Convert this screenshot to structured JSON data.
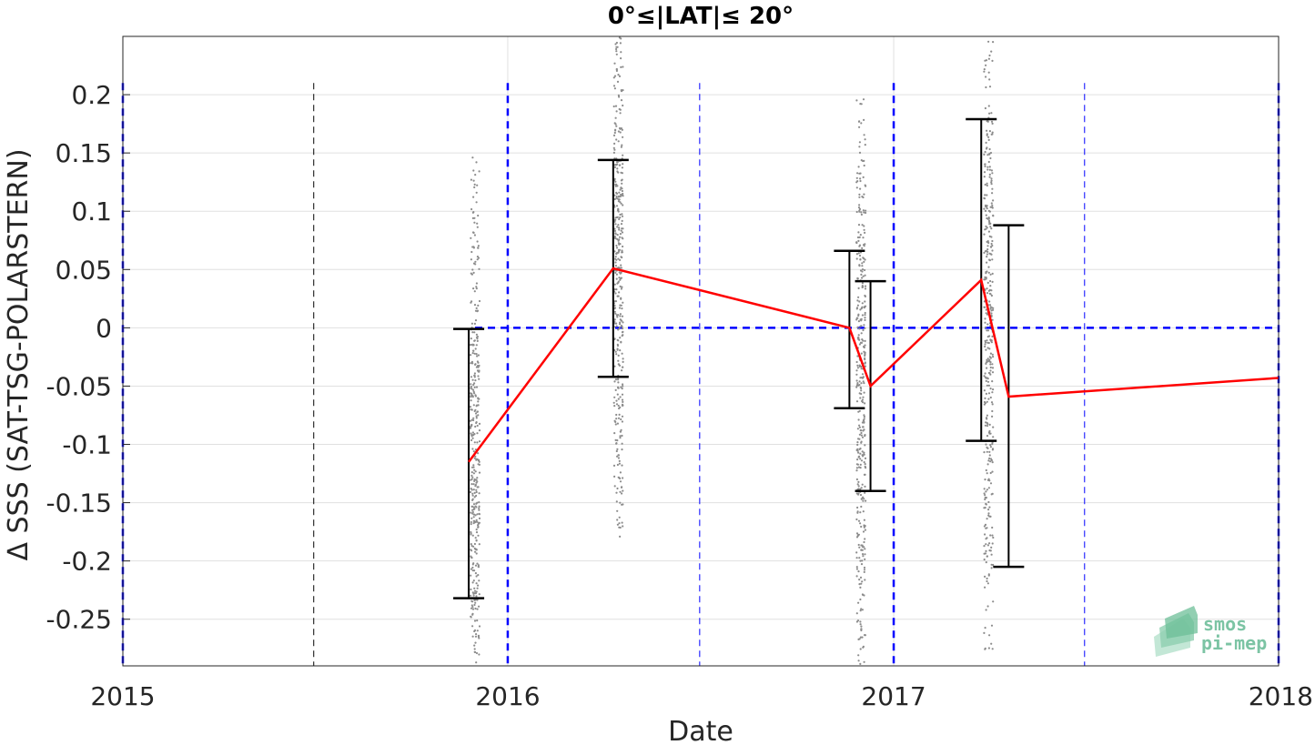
{
  "chart_data": {
    "type": "line",
    "title": "0°≤|LAT|≤ 20°",
    "xlabel": "Date",
    "ylabel": "Δ SSS (SAT-TSG-POLARSTERN)",
    "xlim": [
      "2015-01-01",
      "2018-01-01"
    ],
    "ylim": [
      -0.29,
      0.25
    ],
    "x_ticks": [
      "2015",
      "2016",
      "2017",
      "2018"
    ],
    "y_ticks": [
      0.2,
      0.15,
      0.1,
      0.05,
      0,
      -0.05,
      -0.1,
      -0.15,
      -0.2,
      -0.25
    ],
    "y_tick_labels": [
      "0.2",
      "0.15",
      "0.1",
      "0.05",
      "0",
      "-0.05",
      "-0.1",
      "-0.15",
      "-0.2",
      "-0.25"
    ],
    "grid": true,
    "mean_line": {
      "color": "#ff0000",
      "points": [
        {
          "date": "2015-11-25",
          "y": -0.115
        },
        {
          "date": "2016-04-10",
          "y": 0.051
        },
        {
          "date": "2016-11-20",
          "y": 0.0
        },
        {
          "date": "2016-12-10",
          "y": -0.05
        },
        {
          "date": "2017-03-25",
          "y": 0.041
        },
        {
          "date": "2017-04-20",
          "y": -0.059
        },
        {
          "date": "2018-01-01",
          "y": -0.043
        }
      ]
    },
    "error_bars": [
      {
        "date": "2015-11-25",
        "low": -0.232,
        "high": -0.001
      },
      {
        "date": "2016-04-10",
        "low": -0.042,
        "high": 0.144
      },
      {
        "date": "2016-11-20",
        "low": -0.069,
        "high": 0.066
      },
      {
        "date": "2016-12-10",
        "low": -0.14,
        "high": 0.04
      },
      {
        "date": "2017-03-25",
        "low": -0.097,
        "high": 0.179
      },
      {
        "date": "2017-04-20",
        "low": -0.205,
        "high": 0.088
      }
    ],
    "scatter_clusters": [
      {
        "date": "2015-12-01",
        "low": -0.29,
        "high": 0.155,
        "center": -0.12
      },
      {
        "date": "2016-04-15",
        "low": -0.18,
        "high": 0.25,
        "center": 0.05
      },
      {
        "date": "2016-12-01",
        "low": -0.29,
        "high": 0.2,
        "center": -0.05
      },
      {
        "date": "2017-04-01",
        "low": -0.28,
        "high": 0.25,
        "center": 0.0
      }
    ],
    "reference_lines": {
      "zero_line": {
        "y": 0,
        "from": "2015-12-01",
        "to": "2018-01-01",
        "color": "#0000ff"
      },
      "year_lines": [
        "2015-01-01",
        "2016-01-01",
        "2017-01-01",
        "2018-01-01"
      ],
      "half_year_lines": [
        "2015-07-01",
        "2016-07-01",
        "2017-07-01"
      ],
      "year_line_color": "#0000ff",
      "half_year_colors": [
        "#000000",
        "#0000ff",
        "#0000ff"
      ]
    }
  },
  "logo": {
    "line1": "smos",
    "line2": "pi-mep",
    "color": "#7cc4a4"
  }
}
